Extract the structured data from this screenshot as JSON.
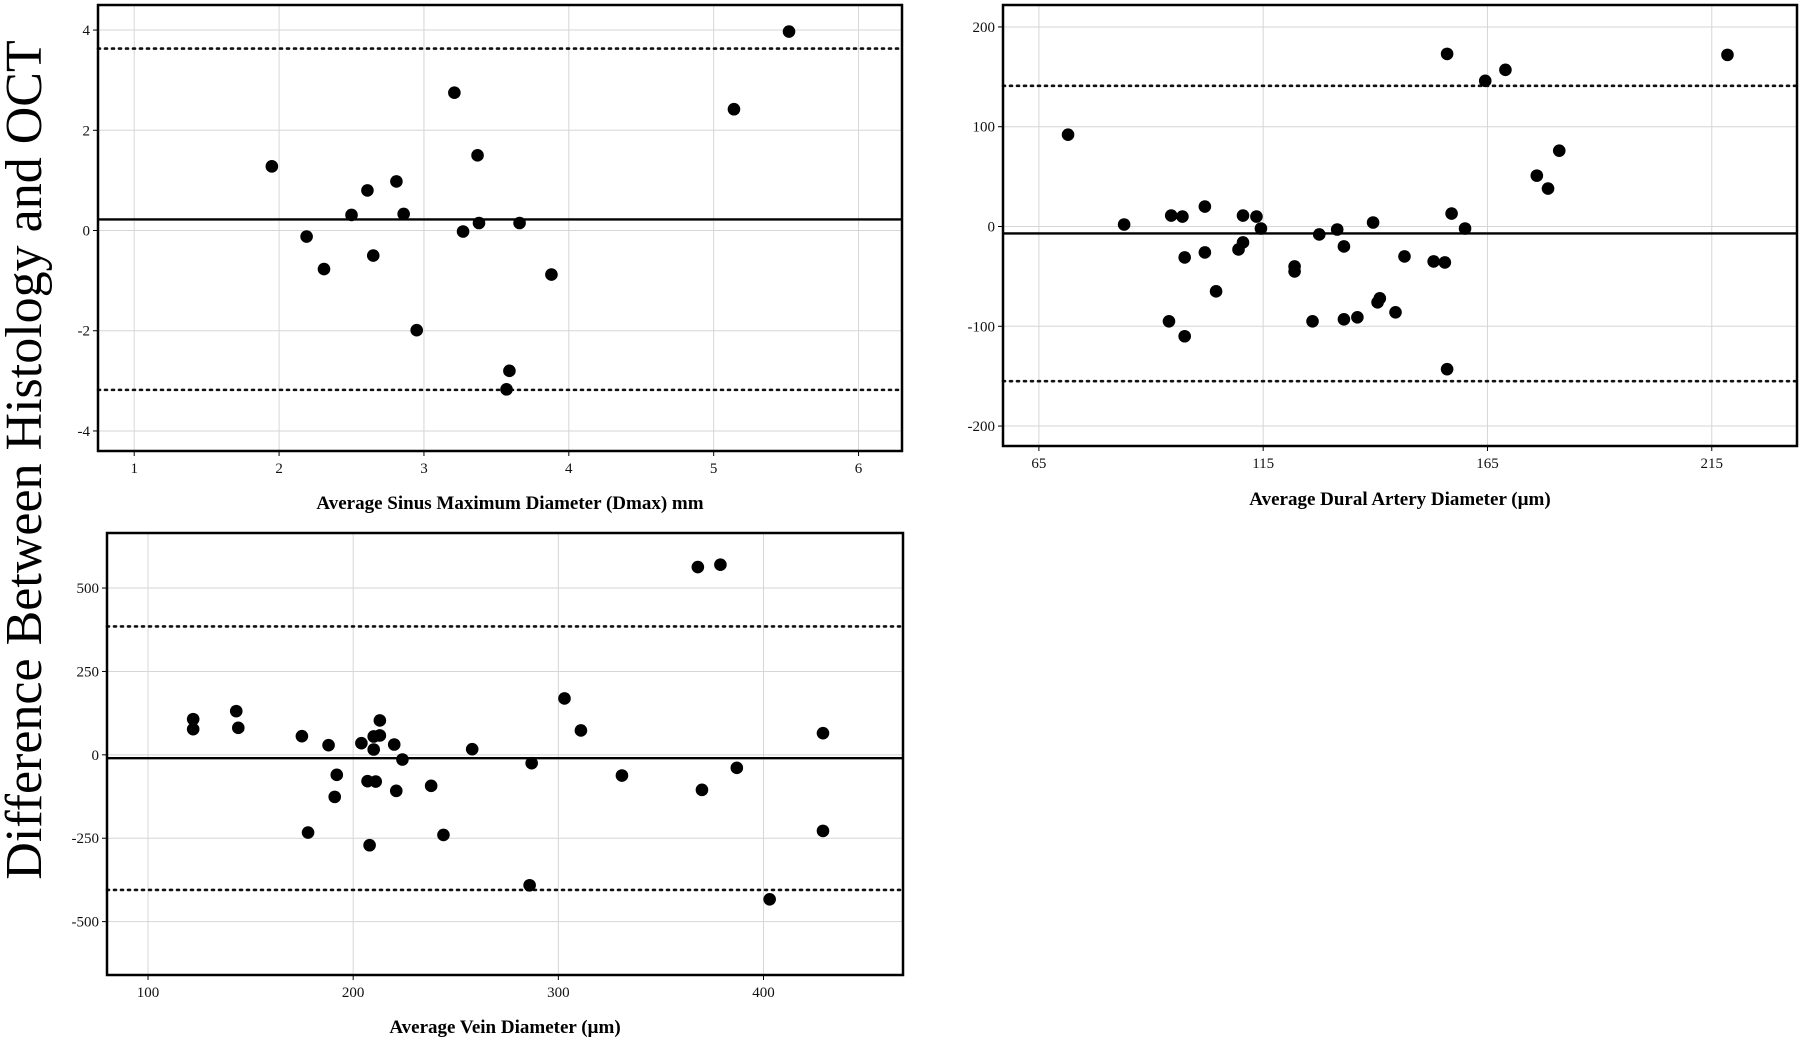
{
  "figure": {
    "shared_ylabel": "Difference Between Histology and OCT"
  },
  "chart_data": [
    {
      "type": "scatter",
      "xlabel": "Average Sinus Maximum Diameter (Dmax) mm",
      "ylabel": "Difference Between Histology and OCT",
      "xlim": [
        0.75,
        6.3
      ],
      "ylim": [
        -4.4,
        4.5
      ],
      "xticks": [
        1,
        2,
        3,
        4,
        5,
        6
      ],
      "yticks": [
        -4,
        -2,
        0,
        2,
        4
      ],
      "mean_line": 0.22,
      "limits_of_agreement": [
        3.63,
        -3.18
      ],
      "grid": true,
      "points": [
        [
          1.95,
          1.28
        ],
        [
          2.19,
          -0.12
        ],
        [
          2.31,
          -0.77
        ],
        [
          2.5,
          0.31
        ],
        [
          2.61,
          0.8
        ],
        [
          2.65,
          -0.5
        ],
        [
          2.81,
          0.98
        ],
        [
          2.86,
          0.33
        ],
        [
          2.95,
          -1.99
        ],
        [
          3.21,
          2.75
        ],
        [
          3.27,
          -0.02
        ],
        [
          3.37,
          1.5
        ],
        [
          3.38,
          0.15
        ],
        [
          3.57,
          -3.17
        ],
        [
          3.59,
          -2.8
        ],
        [
          3.66,
          0.15
        ],
        [
          3.88,
          -0.88
        ],
        [
          5.14,
          2.42
        ],
        [
          5.52,
          3.97
        ]
      ]
    },
    {
      "type": "scatter",
      "xlabel": "Average Dural Artery Diameter (µm)",
      "ylabel": "Difference Between Histology and OCT",
      "xlim": [
        57,
        234
      ],
      "ylim": [
        -220,
        222
      ],
      "xticks": [
        65,
        115,
        165,
        215
      ],
      "yticks": [
        -200,
        -100,
        0,
        100,
        200
      ],
      "mean_line": -7,
      "limits_of_agreement": [
        141,
        -155
      ],
      "grid": true,
      "points": [
        [
          71.5,
          92
        ],
        [
          84,
          2
        ],
        [
          94,
          -95
        ],
        [
          94.5,
          11
        ],
        [
          97,
          10
        ],
        [
          97.5,
          -31
        ],
        [
          97.5,
          -110
        ],
        [
          102,
          20
        ],
        [
          102,
          -26
        ],
        [
          104.5,
          -65
        ],
        [
          109.5,
          -23
        ],
        [
          110.5,
          11
        ],
        [
          110.5,
          -16
        ],
        [
          113.5,
          10
        ],
        [
          114.5,
          -2
        ],
        [
          122,
          -40
        ],
        [
          122,
          -45
        ],
        [
          126,
          -95
        ],
        [
          127.5,
          -8
        ],
        [
          131.5,
          -3
        ],
        [
          133,
          -20
        ],
        [
          133,
          -93
        ],
        [
          136,
          -91
        ],
        [
          139.5,
          4
        ],
        [
          140.5,
          -76
        ],
        [
          141,
          -72
        ],
        [
          144.5,
          -86
        ],
        [
          146.5,
          -30
        ],
        [
          153,
          -35
        ],
        [
          155.5,
          -36
        ],
        [
          156,
          173
        ],
        [
          156,
          -143
        ],
        [
          157,
          13
        ],
        [
          160,
          -2
        ],
        [
          164.5,
          146
        ],
        [
          169,
          157
        ],
        [
          176,
          51
        ],
        [
          178.5,
          38
        ],
        [
          181,
          76
        ],
        [
          218.5,
          172
        ]
      ]
    },
    {
      "type": "scatter",
      "xlabel": "Average Vein Diameter (µm)",
      "ylabel": "Difference Between Histology and OCT",
      "xlim": [
        80,
        468
      ],
      "ylim": [
        -660,
        665
      ],
      "xticks": [
        100,
        200,
        300,
        400
      ],
      "yticks": [
        -500,
        -250,
        0,
        250,
        500
      ],
      "mean_line": -10,
      "limits_of_agreement": [
        385,
        -405
      ],
      "grid": true,
      "points": [
        [
          122,
          107
        ],
        [
          122,
          77
        ],
        [
          143,
          131
        ],
        [
          144,
          81
        ],
        [
          175,
          56
        ],
        [
          178,
          -233
        ],
        [
          188,
          29
        ],
        [
          191,
          -126
        ],
        [
          192,
          -60
        ],
        [
          204,
          35
        ],
        [
          207,
          -79
        ],
        [
          208,
          -271
        ],
        [
          210,
          55
        ],
        [
          210,
          16
        ],
        [
          211,
          -80
        ],
        [
          213,
          58
        ],
        [
          213,
          103
        ],
        [
          220,
          31
        ],
        [
          221,
          -108
        ],
        [
          224,
          -14
        ],
        [
          238,
          -93
        ],
        [
          244,
          -240
        ],
        [
          258,
          17
        ],
        [
          286,
          -391
        ],
        [
          287,
          -25
        ],
        [
          303,
          169
        ],
        [
          311,
          73
        ],
        [
          331,
          -62
        ],
        [
          368,
          563
        ],
        [
          370,
          -105
        ],
        [
          379,
          570
        ],
        [
          387,
          -39
        ],
        [
          403,
          -433
        ],
        [
          429,
          65
        ],
        [
          429,
          -228
        ]
      ]
    }
  ]
}
